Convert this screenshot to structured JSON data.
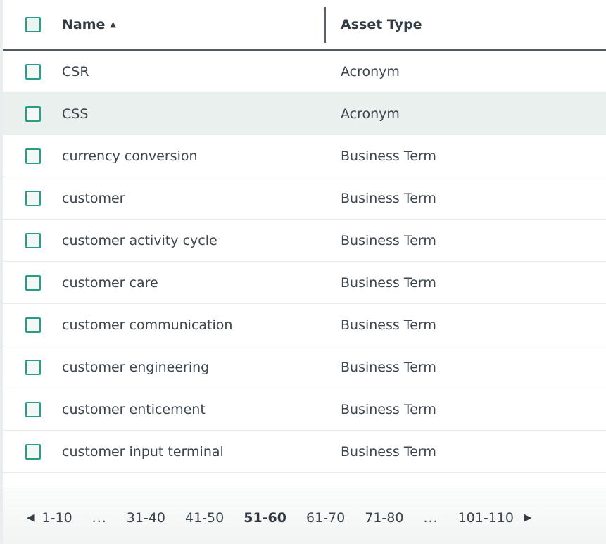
{
  "table": {
    "columns": [
      {
        "label": "Name",
        "sorted": "ascending"
      },
      {
        "label": "Asset Type",
        "sorted": null
      }
    ],
    "rows": [
      {
        "name": "CSR",
        "asset_type": "Acronym",
        "highlighted": false
      },
      {
        "name": "CSS",
        "asset_type": "Acronym",
        "highlighted": true
      },
      {
        "name": "currency conversion",
        "asset_type": "Business Term",
        "highlighted": false
      },
      {
        "name": "customer",
        "asset_type": "Business Term",
        "highlighted": false
      },
      {
        "name": "customer activity cycle",
        "asset_type": "Business Term",
        "highlighted": false
      },
      {
        "name": "customer care",
        "asset_type": "Business Term",
        "highlighted": false
      },
      {
        "name": "customer communication",
        "asset_type": "Business Term",
        "highlighted": false
      },
      {
        "name": "customer engineering",
        "asset_type": "Business Term",
        "highlighted": false
      },
      {
        "name": "customer enticement",
        "asset_type": "Business Term",
        "highlighted": false
      },
      {
        "name": "customer input terminal",
        "asset_type": "Business Term",
        "highlighted": false
      }
    ],
    "checkboxes_checked": false
  },
  "icons": {
    "sort_ascending": "▲",
    "prev_page": "◀",
    "next_page": "▶"
  },
  "pagination": {
    "pages": [
      {
        "label": "1-10",
        "current": false
      },
      {
        "label": "...",
        "current": false
      },
      {
        "label": "31-40",
        "current": false
      },
      {
        "label": "41-50",
        "current": false
      },
      {
        "label": "51-60",
        "current": true
      },
      {
        "label": "61-70",
        "current": false
      },
      {
        "label": "71-80",
        "current": false
      },
      {
        "label": "...",
        "current": false
      },
      {
        "label": "101-110",
        "current": false
      }
    ]
  },
  "colors": {
    "accent_teal": "#2b9c8a",
    "row_highlight": "#e9f0ee",
    "header_border": "#53585c",
    "row_border": "#e8ebed",
    "text": "#3c454d",
    "header_text": "#333d45",
    "pagination_bg": "#f3f5f5"
  }
}
